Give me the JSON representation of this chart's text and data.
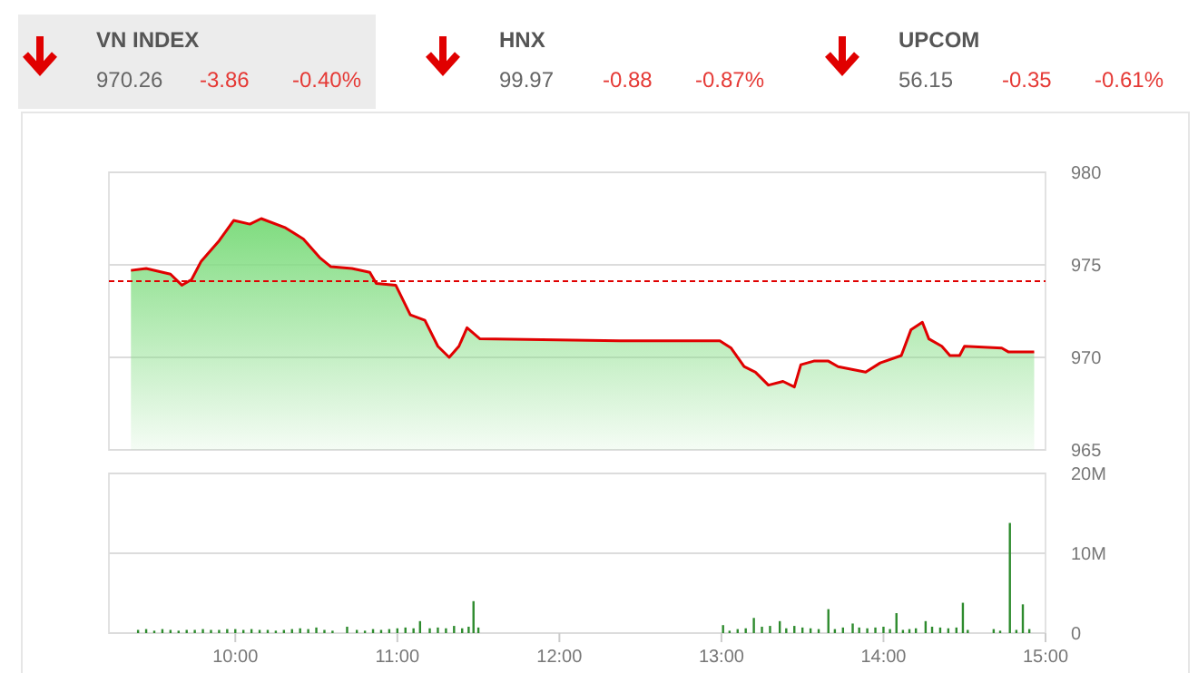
{
  "chart_data": [
    {
      "type": "other",
      "annotations": [
        "VN INDEX",
        "970.26",
        "-3.86",
        "-0.40%",
        "HNX",
        "99.97",
        "-0.88",
        "-0.87%",
        "UPCOM",
        "56.15",
        "-0.35",
        "-0.61%"
      ]
    },
    {
      "type": "area",
      "xlim": [
        9.22,
        15.0
      ],
      "ylim": [
        965,
        980
      ],
      "yticks": [
        965,
        970,
        975,
        980
      ],
      "grid": "y",
      "tick_labels": "y",
      "ref_lines": [
        {
          "axis": "y",
          "value": 974.12,
          "color": "#e00000",
          "line_style": "dashed"
        }
      ],
      "series": [
        {
          "color": "#e00000",
          "x": [
            9.356,
            9.45,
            9.6,
            9.67,
            9.73,
            9.79,
            9.9,
            9.99,
            10.09,
            10.16,
            10.31,
            10.42,
            10.52,
            10.59,
            10.72,
            10.83,
            10.87,
            10.99,
            11.08,
            11.17,
            11.25,
            11.32,
            11.38,
            11.43,
            11.51,
            12.37,
            12.6,
            12.99,
            13.06,
            13.14,
            13.21,
            13.29,
            13.38,
            13.45,
            13.49,
            13.57,
            13.66,
            13.72,
            13.89,
            13.98,
            14.11,
            14.17,
            14.24,
            14.28,
            14.36,
            14.41,
            14.47,
            14.5,
            14.73,
            14.77,
            14.93
          ],
          "values": [
            974.7,
            974.8,
            974.5,
            973.9,
            974.2,
            975.2,
            976.3,
            977.4,
            977.2,
            977.5,
            977.0,
            976.4,
            975.4,
            974.9,
            974.8,
            974.6,
            974.0,
            973.9,
            972.3,
            972.0,
            970.6,
            970.0,
            970.6,
            971.6,
            971.0,
            970.9,
            970.9,
            970.9,
            970.5,
            969.5,
            969.2,
            968.5,
            968.7,
            968.4,
            969.6,
            969.8,
            969.8,
            969.5,
            969.2,
            969.7,
            970.1,
            971.5,
            971.9,
            971.0,
            970.6,
            970.1,
            970.1,
            970.6,
            970.5,
            970.3,
            970.3
          ]
        }
      ]
    },
    {
      "type": "bar",
      "xlim": [
        9.22,
        15.0
      ],
      "ylim": [
        0,
        20
      ],
      "grid": "y",
      "xticks": [
        {
          "value": 10,
          "label": "10:00"
        },
        {
          "value": 11,
          "label": "11:00"
        },
        {
          "value": 12,
          "label": "12:00"
        },
        {
          "value": 13,
          "label": "13:00"
        },
        {
          "value": 14,
          "label": "14:00"
        },
        {
          "value": 15,
          "label": "15:00"
        }
      ],
      "yticks": [
        {
          "value": 0,
          "label": "0"
        },
        {
          "value": 10,
          "label": "10M"
        },
        {
          "value": 20,
          "label": "20M"
        }
      ],
      "series": [
        {
          "color": "#2e8b2e",
          "x": [
            9.4,
            9.45,
            9.5,
            9.55,
            9.6,
            9.65,
            9.7,
            9.75,
            9.8,
            9.85,
            9.9,
            9.95,
            10.0,
            10.05,
            10.1,
            10.15,
            10.2,
            10.25,
            10.3,
            10.35,
            10.4,
            10.45,
            10.5,
            10.55,
            10.6,
            10.69,
            10.75,
            10.8,
            10.85,
            10.9,
            10.95,
            11.0,
            11.05,
            11.1,
            11.14,
            11.2,
            11.25,
            11.3,
            11.35,
            11.4,
            11.44,
            11.47,
            11.5,
            13.01,
            13.05,
            13.1,
            13.15,
            13.2,
            13.25,
            13.3,
            13.36,
            13.4,
            13.45,
            13.5,
            13.55,
            13.6,
            13.66,
            13.7,
            13.75,
            13.81,
            13.85,
            13.9,
            13.95,
            14.0,
            14.04,
            14.08,
            14.12,
            14.16,
            14.2,
            14.26,
            14.3,
            14.35,
            14.4,
            14.45,
            14.49,
            14.52,
            14.68,
            14.72,
            14.78,
            14.82,
            14.86,
            14.9
          ],
          "values": [
            0.4,
            0.5,
            0.3,
            0.5,
            0.4,
            0.3,
            0.4,
            0.4,
            0.5,
            0.4,
            0.4,
            0.5,
            0.5,
            0.4,
            0.5,
            0.4,
            0.4,
            0.3,
            0.4,
            0.5,
            0.6,
            0.5,
            0.7,
            0.4,
            0.3,
            0.8,
            0.4,
            0.3,
            0.5,
            0.4,
            0.5,
            0.6,
            0.7,
            0.6,
            1.5,
            0.6,
            0.7,
            0.6,
            0.9,
            0.6,
            0.8,
            4.0,
            0.7,
            1.0,
            0.3,
            0.5,
            0.6,
            1.9,
            0.8,
            0.9,
            1.5,
            0.6,
            0.9,
            0.7,
            0.6,
            0.5,
            3.0,
            0.5,
            0.7,
            1.2,
            0.7,
            0.6,
            0.7,
            0.8,
            0.5,
            2.5,
            0.4,
            0.5,
            0.6,
            1.5,
            0.8,
            0.7,
            0.6,
            0.7,
            3.8,
            0.4,
            0.5,
            0.3,
            13.8,
            0.4,
            3.6,
            0.5
          ]
        }
      ]
    }
  ]
}
